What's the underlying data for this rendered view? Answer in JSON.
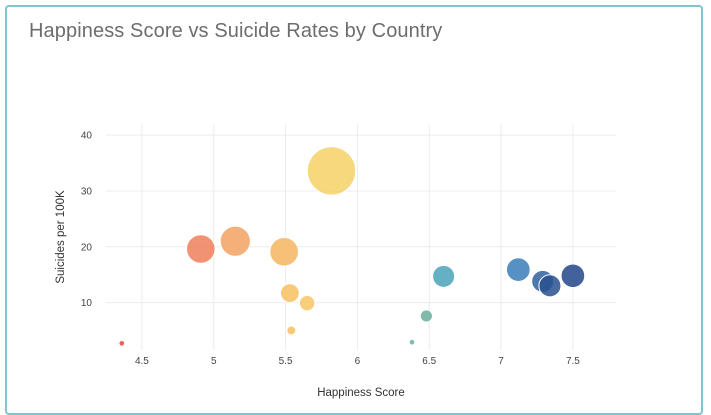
{
  "title": "Happiness Score vs Suicide Rates by Country",
  "chart_data": {
    "type": "scatter",
    "subtype": "bubble",
    "title": "Happiness Score vs Suicide Rates by Country",
    "xlabel": "Happiness Score",
    "ylabel": "Suicides per 100K",
    "xlim": [
      4.25,
      7.8
    ],
    "ylim": [
      1.5,
      42
    ],
    "xticks": [
      "4.5",
      "5",
      "5.5",
      "6",
      "6.5",
      "7",
      "7.5"
    ],
    "yticks": [
      "10",
      "20",
      "30",
      "40"
    ],
    "grid": true,
    "legend": "none",
    "points": [
      {
        "x": 4.36,
        "y": 2.7,
        "size": 1,
        "color": "#e8473a"
      },
      {
        "x": 4.91,
        "y": 19.6,
        "size": 15,
        "color": "#ee7f5a"
      },
      {
        "x": 5.15,
        "y": 21.0,
        "size": 16,
        "color": "#f3a262"
      },
      {
        "x": 5.49,
        "y": 19.1,
        "size": 15,
        "color": "#f5b562"
      },
      {
        "x": 5.53,
        "y": 11.7,
        "size": 9,
        "color": "#f6bf62"
      },
      {
        "x": 5.54,
        "y": 5.0,
        "size": 3,
        "color": "#f6bf62"
      },
      {
        "x": 5.65,
        "y": 9.9,
        "size": 7,
        "color": "#f6c564"
      },
      {
        "x": 5.82,
        "y": 33.6,
        "size": 27,
        "color": "#f5d166"
      },
      {
        "x": 6.38,
        "y": 2.9,
        "size": 1,
        "color": "#66b2a4"
      },
      {
        "x": 6.48,
        "y": 7.6,
        "size": 5,
        "color": "#68ae9c"
      },
      {
        "x": 6.6,
        "y": 14.7,
        "size": 11,
        "color": "#4aa3b8"
      },
      {
        "x": 7.12,
        "y": 15.9,
        "size": 12,
        "color": "#3a7db8"
      },
      {
        "x": 7.29,
        "y": 13.8,
        "size": 11,
        "color": "#2f5f9e"
      },
      {
        "x": 7.34,
        "y": 13.0,
        "size": 11,
        "color": "#28508f"
      },
      {
        "x": 7.5,
        "y": 14.8,
        "size": 12,
        "color": "#22478a"
      }
    ]
  }
}
